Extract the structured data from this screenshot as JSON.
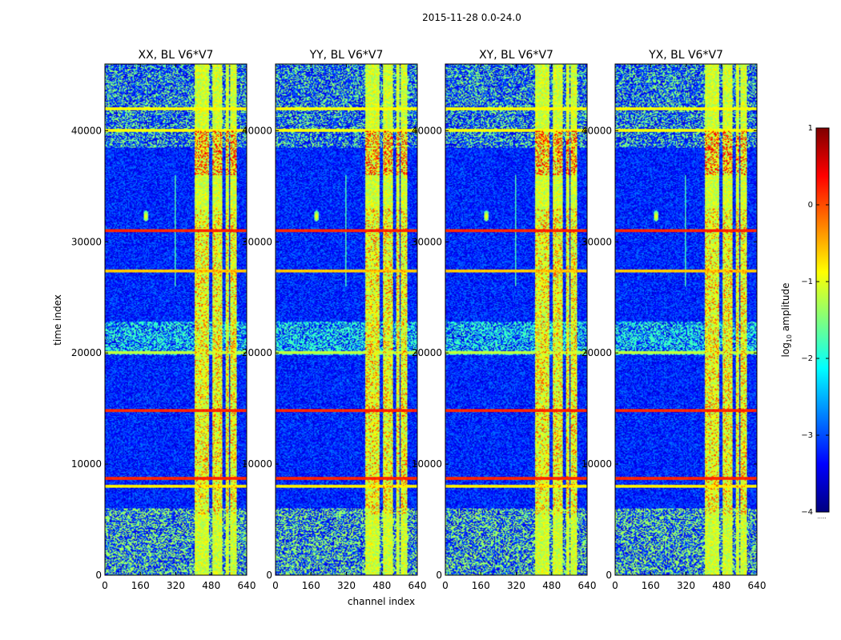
{
  "chart_data": {
    "type": "heatmap",
    "suptitle": "2015-11-28 0.0-24.0",
    "xlabel": "channel index",
    "ylabel": "time index",
    "xlim": [
      0,
      640
    ],
    "ylim": [
      0,
      46000
    ],
    "xticks": [
      0,
      160,
      320,
      480,
      640
    ],
    "yticks": [
      0,
      10000,
      20000,
      30000,
      40000
    ],
    "colorbar": {
      "label": "log$_{10}$ amplitude",
      "label_main": "log",
      "label_sub": "10",
      "label_rest": " amplitude",
      "range": [
        -4,
        1
      ],
      "ticks": [
        1,
        0,
        -1,
        -2,
        -3,
        -4
      ],
      "tick_labels": [
        "1",
        "0",
        "−1",
        "−2",
        "−3",
        "−4"
      ],
      "colormap": [
        "#00007f",
        "#0000ff",
        "#007fff",
        "#00ffff",
        "#7fff7f",
        "#ffff00",
        "#ff7f00",
        "#ff0000",
        "#7f0000"
      ],
      "note": "....."
    },
    "panels": [
      {
        "title": "XX, BL V6*V7"
      },
      {
        "title": "YY, BL V6*V7"
      },
      {
        "title": "XY, BL V6*V7"
      },
      {
        "title": "YX, BL V6*V7"
      }
    ],
    "approx_features": {
      "background_level": -3.2,
      "rfi_channel_bands": [
        [
          405,
          418
        ],
        [
          420,
          470
        ],
        [
          485,
          530
        ],
        [
          545,
          560
        ],
        [
          565,
          595
        ]
      ],
      "rfi_time_rows": [
        {
          "t": 31000,
          "level": 0.2
        },
        {
          "t": 14800,
          "level": 0.2
        },
        {
          "t": 8700,
          "level": 0.2
        },
        {
          "t": 8000,
          "level": -0.8
        },
        {
          "t": 27400,
          "level": -0.6
        },
        {
          "t": 20000,
          "level": -1.2
        },
        {
          "t": 42000,
          "level": -0.9
        },
        {
          "t": 40000,
          "level": -0.9
        }
      ],
      "bright_source": {
        "channel": 185,
        "t": 32300,
        "level": -0.6
      }
    }
  }
}
